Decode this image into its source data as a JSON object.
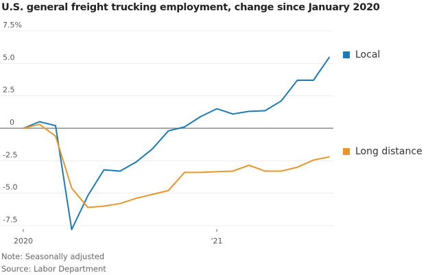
{
  "chart_data": {
    "type": "line",
    "title": "U.S. general freight trucking employment, change since January 2020",
    "xlabel": "",
    "ylabel": "",
    "y_unit": "%",
    "ylim": [
      -7.5,
      7.5
    ],
    "y_ticks": [
      {
        "value": 7.5,
        "label": "7.5%"
      },
      {
        "value": 5.0,
        "label": "5.0"
      },
      {
        "value": 2.5,
        "label": "2.5"
      },
      {
        "value": 0,
        "label": "0"
      },
      {
        "value": -2.5,
        "label": "-2.5"
      },
      {
        "value": -5.0,
        "label": "-5.0"
      },
      {
        "value": -7.5,
        "label": "-7.5"
      }
    ],
    "x": [
      "2020-01",
      "2020-02",
      "2020-03",
      "2020-04",
      "2020-05",
      "2020-06",
      "2020-07",
      "2020-08",
      "2020-09",
      "2020-10",
      "2020-11",
      "2020-12",
      "2021-01",
      "2021-02",
      "2021-03",
      "2021-04",
      "2021-05",
      "2021-06",
      "2021-07",
      "2021-08"
    ],
    "x_ticks": [
      {
        "index": 0,
        "label": "2020"
      },
      {
        "index": 12,
        "label": "'21"
      }
    ],
    "grid": true,
    "legend_position": "right",
    "series": [
      {
        "name": "Local",
        "color": "#1a7ab5",
        "values": [
          0,
          0.5,
          0.2,
          -7.8,
          -5.2,
          -3.2,
          -3.3,
          -2.6,
          -1.6,
          -0.2,
          0.1,
          0.9,
          1.5,
          1.1,
          1.3,
          1.35,
          2.1,
          3.7,
          3.7,
          5.5
        ]
      },
      {
        "name": "Long distance",
        "color": "#e6962b",
        "values": [
          0,
          0.3,
          -0.6,
          -4.6,
          -6.1,
          -6.0,
          -5.8,
          -5.4,
          -5.1,
          -4.8,
          -3.4,
          -3.4,
          -3.35,
          -3.3,
          -2.85,
          -3.3,
          -3.3,
          -3.0,
          -2.45,
          -2.2
        ]
      }
    ]
  },
  "notes": {
    "note": "Note: Seasonally adjusted",
    "source": "Source: Labor Department"
  }
}
